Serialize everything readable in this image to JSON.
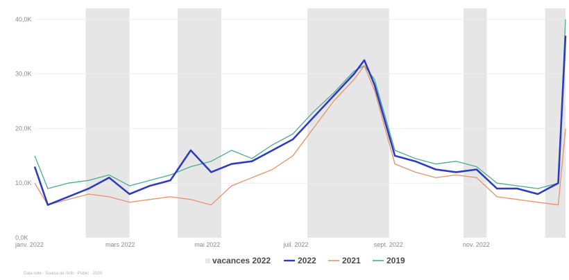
{
  "chart_data": {
    "type": "line",
    "title": "",
    "xlabel": "",
    "ylabel": "",
    "y_tick_labels": [
      "0,0K",
      "10,0K",
      "20,0K",
      "30,0K",
      "40,0K"
    ],
    "y_tick_values": [
      0,
      10000,
      20000,
      30000,
      40000
    ],
    "ylim": [
      0,
      42000
    ],
    "x_tick_labels": [
      "janv. 2022",
      "mars 2022",
      "mai 2022",
      "juil. 2022",
      "sept. 2022",
      "nov. 2022"
    ],
    "x_tick_dates": [
      "2022-01-01",
      "2022-03-01",
      "2022-05-01",
      "2022-07-01",
      "2022-09-01",
      "2022-11-01"
    ],
    "xlim": [
      "2022-01-01",
      "2022-12-31"
    ],
    "grid": "horizontal",
    "legend_position": "bottom",
    "shaded_periods_label": "vacances 2022",
    "shaded_periods": [
      [
        "2022-02-05",
        "2022-03-07"
      ],
      [
        "2022-04-09",
        "2022-05-09"
      ],
      [
        "2022-07-07",
        "2022-09-01"
      ],
      [
        "2022-10-22",
        "2022-11-07"
      ],
      [
        "2022-12-17",
        "2022-12-31"
      ]
    ],
    "series": [
      {
        "name": "2022",
        "color": "#2f3bbd",
        "points": [
          [
            "2022-01-01",
            13000
          ],
          [
            "2022-01-10",
            6000
          ],
          [
            "2022-01-24",
            7500
          ],
          [
            "2022-02-07",
            9000
          ],
          [
            "2022-02-21",
            11000
          ],
          [
            "2022-03-07",
            8000
          ],
          [
            "2022-03-21",
            9500
          ],
          [
            "2022-04-04",
            10500
          ],
          [
            "2022-04-18",
            16000
          ],
          [
            "2022-05-02",
            12000
          ],
          [
            "2022-05-16",
            13500
          ],
          [
            "2022-05-30",
            14000
          ],
          [
            "2022-06-13",
            16000
          ],
          [
            "2022-06-27",
            18000
          ],
          [
            "2022-07-11",
            22000
          ],
          [
            "2022-07-25",
            26000
          ],
          [
            "2022-08-08",
            30000
          ],
          [
            "2022-08-15",
            32500
          ],
          [
            "2022-08-22",
            28000
          ],
          [
            "2022-09-05",
            15000
          ],
          [
            "2022-09-19",
            14000
          ],
          [
            "2022-10-03",
            12500
          ],
          [
            "2022-10-17",
            12000
          ],
          [
            "2022-10-31",
            12500
          ],
          [
            "2022-11-14",
            9000
          ],
          [
            "2022-11-28",
            9000
          ],
          [
            "2022-12-12",
            8000
          ],
          [
            "2022-12-26",
            10000
          ],
          [
            "2022-12-31",
            37000
          ]
        ]
      },
      {
        "name": "2021",
        "color": "#e6926a",
        "points": [
          [
            "2022-01-01",
            10000
          ],
          [
            "2022-01-10",
            6000
          ],
          [
            "2022-01-24",
            7000
          ],
          [
            "2022-02-07",
            8000
          ],
          [
            "2022-02-21",
            7500
          ],
          [
            "2022-03-07",
            6500
          ],
          [
            "2022-03-21",
            7000
          ],
          [
            "2022-04-04",
            7500
          ],
          [
            "2022-04-18",
            7000
          ],
          [
            "2022-05-02",
            6000
          ],
          [
            "2022-05-16",
            9500
          ],
          [
            "2022-05-30",
            11000
          ],
          [
            "2022-06-13",
            12500
          ],
          [
            "2022-06-27",
            15000
          ],
          [
            "2022-07-11",
            20000
          ],
          [
            "2022-07-25",
            25000
          ],
          [
            "2022-08-08",
            29000
          ],
          [
            "2022-08-15",
            31500
          ],
          [
            "2022-08-22",
            27000
          ],
          [
            "2022-09-05",
            13500
          ],
          [
            "2022-09-19",
            12000
          ],
          [
            "2022-10-03",
            11000
          ],
          [
            "2022-10-17",
            11500
          ],
          [
            "2022-10-31",
            11000
          ],
          [
            "2022-11-14",
            7500
          ],
          [
            "2022-11-28",
            7000
          ],
          [
            "2022-12-12",
            6500
          ],
          [
            "2022-12-26",
            6000
          ],
          [
            "2022-12-31",
            20000
          ]
        ]
      },
      {
        "name": "2019",
        "color": "#4aa89c",
        "points": [
          [
            "2022-01-01",
            15000
          ],
          [
            "2022-01-10",
            9000
          ],
          [
            "2022-01-24",
            10000
          ],
          [
            "2022-02-07",
            10500
          ],
          [
            "2022-02-21",
            11500
          ],
          [
            "2022-03-07",
            9500
          ],
          [
            "2022-03-21",
            10500
          ],
          [
            "2022-04-04",
            11500
          ],
          [
            "2022-04-18",
            13000
          ],
          [
            "2022-05-02",
            14000
          ],
          [
            "2022-05-16",
            16000
          ],
          [
            "2022-05-30",
            14500
          ],
          [
            "2022-06-13",
            17000
          ],
          [
            "2022-06-27",
            19000
          ],
          [
            "2022-07-11",
            23000
          ],
          [
            "2022-07-25",
            26500
          ],
          [
            "2022-08-08",
            30500
          ],
          [
            "2022-08-15",
            31500
          ],
          [
            "2022-08-22",
            29000
          ],
          [
            "2022-09-05",
            16000
          ],
          [
            "2022-09-19",
            14500
          ],
          [
            "2022-10-03",
            13500
          ],
          [
            "2022-10-17",
            14000
          ],
          [
            "2022-10-31",
            13000
          ],
          [
            "2022-11-14",
            10000
          ],
          [
            "2022-11-28",
            9500
          ],
          [
            "2022-12-12",
            9000
          ],
          [
            "2022-12-26",
            10000
          ],
          [
            "2022-12-31",
            40000
          ]
        ]
      }
    ]
  },
  "footer": {
    "source_text": "Data note · Source de l'info · Public · 2020"
  }
}
